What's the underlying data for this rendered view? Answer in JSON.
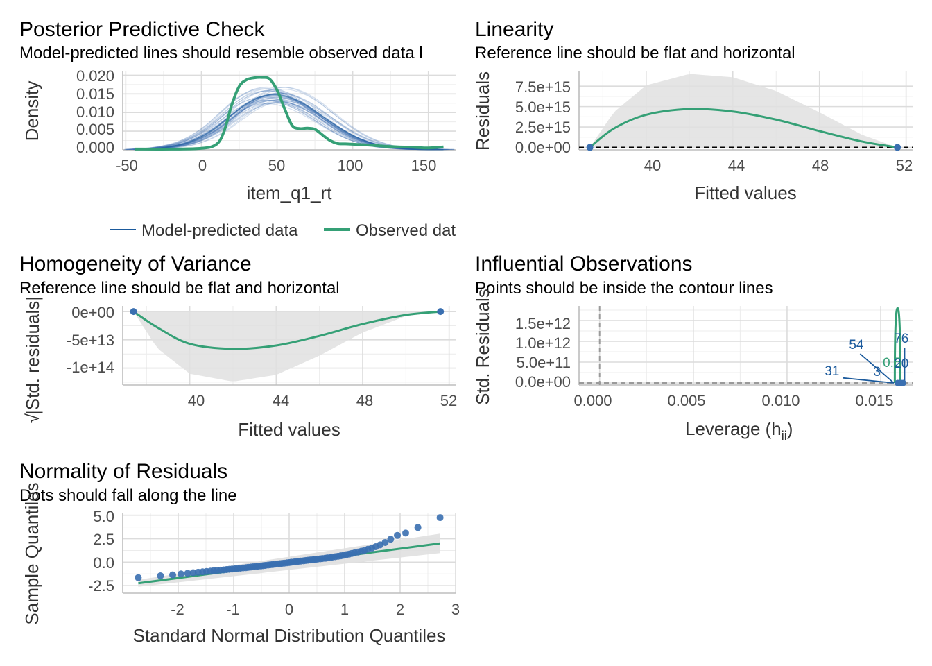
{
  "colors": {
    "blue": "#1b5a9c",
    "blue_light": "#3a6fb0",
    "green": "#35a076",
    "ribbon": "#e0e0e0",
    "dashed": "#000000",
    "dashed_gray": "#9a9a9a"
  },
  "panels": {
    "ppc": {
      "title": "Posterior Predictive Check",
      "subtitle": "Model-predicted lines should resemble observed data l",
      "xlabel": "item_q1_rt",
      "ylabel": "Density",
      "xticks": [
        "-50",
        "0",
        "50",
        "100",
        "150"
      ],
      "yticks": [
        "0.000",
        "0.005",
        "0.010",
        "0.015",
        "0.020"
      ],
      "legend": {
        "model": "Model-predicted data",
        "observed": "Observed dat"
      }
    },
    "linearity": {
      "title": "Linearity",
      "subtitle": "Reference line should be flat and horizontal",
      "xlabel": "Fitted values",
      "ylabel": "Residuals",
      "xticks": [
        "40",
        "44",
        "48",
        "52"
      ],
      "yticks": [
        "0.0e+00",
        "2.5e+15",
        "5.0e+15",
        "7.5e+15"
      ]
    },
    "homogeneity": {
      "title": "Homogeneity of Variance",
      "subtitle": "Reference line should be flat and horizontal",
      "xlabel": "Fitted values",
      "ylabel": "|Std. residuals|",
      "ylabel_prefix": "√",
      "xticks": [
        "40",
        "44",
        "48",
        "52"
      ],
      "yticks": [
        "0e+00",
        "-5e+13",
        "-1e+14"
      ]
    },
    "influential": {
      "title": "Influential Observations",
      "subtitle": "Points should be inside the contour lines",
      "xlabel": "Leverage (h",
      "xlabel_sub": "ii",
      "xlabel_end": ")",
      "ylabel": "Std. Residuals",
      "xticks": [
        "0.000",
        "0.005",
        "0.010",
        "0.015"
      ],
      "yticks": [
        "0.0e+00",
        "5.0e+11",
        "1.0e+12",
        "1.5e+12"
      ],
      "point_labels": [
        "54",
        "31",
        "3",
        "76",
        "0.5",
        "20"
      ]
    },
    "normality": {
      "title": "Normality of Residuals",
      "subtitle": "Dots should fall along the line",
      "xlabel": "Standard Normal Distribution Quantiles",
      "ylabel": "Sample Quantiles",
      "xticks": [
        "-2",
        "-1",
        "0",
        "1",
        "2",
        "3"
      ],
      "yticks": [
        "5.0",
        "2.5",
        "0.0",
        "-2.5"
      ]
    }
  },
  "chart_data": [
    {
      "type": "line",
      "title": "Posterior Predictive Check",
      "subtitle": "Model-predicted lines should resemble observed data l",
      "xlabel": "item_q1_rt",
      "ylabel": "Density",
      "xlim": [
        -52,
        168
      ],
      "ylim": [
        0,
        0.021
      ],
      "series": [
        {
          "name": "Observed dat",
          "x": [
            -44,
            -20,
            0,
            10,
            15,
            20,
            25,
            30,
            35,
            40,
            45,
            50,
            55,
            60,
            65,
            70,
            75,
            80,
            85,
            90,
            95,
            100,
            110,
            120,
            130,
            140,
            150,
            160
          ],
          "y": [
            0.0002,
            0.0002,
            0.0004,
            0.0015,
            0.005,
            0.012,
            0.017,
            0.0188,
            0.0193,
            0.0194,
            0.019,
            0.016,
            0.011,
            0.0065,
            0.0057,
            0.0058,
            0.0055,
            0.004,
            0.0025,
            0.0017,
            0.0016,
            0.0015,
            0.0013,
            0.001,
            0.0008,
            0.0007,
            0.0005,
            0.0008
          ]
        },
        {
          "name": "Model-predicted data",
          "x": [
            -44,
            -30,
            -20,
            -10,
            0,
            10,
            20,
            30,
            40,
            50,
            60,
            70,
            80,
            90,
            100,
            110,
            120,
            130,
            140,
            150,
            160
          ],
          "y": [
            0.0001,
            0.0004,
            0.0009,
            0.0018,
            0.0035,
            0.006,
            0.0093,
            0.0124,
            0.0143,
            0.0148,
            0.0138,
            0.0118,
            0.009,
            0.0062,
            0.0038,
            0.0021,
            0.001,
            0.0005,
            0.0002,
            0.0001,
            0.0001
          ]
        }
      ]
    },
    {
      "type": "line",
      "title": "Linearity",
      "subtitle": "Reference line should be flat and horizontal",
      "xlabel": "Fitted values",
      "ylabel": "Residuals",
      "xlim": [
        36.9,
        52.3
      ],
      "ylim": [
        -300000000000000.0,
        9300000000000000.0
      ],
      "points": {
        "x": [
          37.4,
          51.6
        ],
        "y": [
          0,
          0
        ]
      },
      "smooth": {
        "x": [
          37.4,
          38.5,
          40,
          42,
          44,
          46,
          48,
          50,
          51.6
        ],
        "y": [
          0,
          2300000000000000.0,
          4000000000000000.0,
          4700000000000000.0,
          4400000000000000.0,
          3400000000000000.0,
          2000000000000000.0,
          700000000000000.0,
          0
        ]
      },
      "ribbon_upper": [
        0,
        4300000000000000.0,
        7600000000000000.0,
        9000000000000000.0,
        8600000000000000.0,
        6900000000000000.0,
        4300000000000000.0,
        1500000000000000.0,
        0
      ],
      "reference_y": 0
    },
    {
      "type": "line",
      "title": "Homogeneity of Variance",
      "subtitle": "Reference line should be flat and horizontal",
      "xlabel": "Fitted values",
      "ylabel": "√|Std. residuals|",
      "xlim": [
        36.9,
        52.3
      ],
      "ylim": [
        -130000000000000.0,
        10000000000000.0
      ],
      "points": {
        "x": [
          37.4,
          51.6
        ],
        "y": [
          0,
          0
        ]
      },
      "smooth": {
        "x": [
          37.4,
          38.5,
          40,
          42,
          44,
          46,
          48,
          50,
          51.6
        ],
        "y": [
          0,
          -28000000000000.0,
          -57000000000000.0,
          -66000000000000.0,
          -60000000000000.0,
          -43000000000000.0,
          -22000000000000.0,
          -6000000000000.0,
          0
        ]
      },
      "ribbon_lower": [
        0,
        -65000000000000.0,
        -110000000000000.0,
        -124000000000000.0,
        -112000000000000.0,
        -78000000000000.0,
        -37000000000000.0,
        -8000000000000.0,
        0
      ]
    },
    {
      "type": "scatter",
      "title": "Influential Observations",
      "subtitle": "Points should be inside the contour lines",
      "xlabel": "Leverage (hii)",
      "ylabel": "Std. Residuals",
      "xlim": [
        -0.0011,
        0.0167
      ],
      "ylim": [
        -50000000000.0,
        1850000000000.0
      ],
      "points": {
        "x": [
          0.0159,
          0.016,
          0.0161,
          0.0162
        ],
        "y": [
          0,
          0,
          0,
          0
        ]
      },
      "labels": [
        {
          "text": "54",
          "x": 0.0137,
          "y": 820000000000.0
        },
        {
          "text": "31",
          "x": 0.0124,
          "y": 180000000000.0
        },
        {
          "text": "3",
          "x": 0.0148,
          "y": 170000000000.0
        },
        {
          "text": "76",
          "x": 0.0161,
          "y": 970000000000.0
        },
        {
          "text": "0.5",
          "x": 0.0156,
          "y": 380000000000.0
        },
        {
          "text": "20",
          "x": 0.0161,
          "y": 370000000000.0
        }
      ],
      "reference_y": 0,
      "reference_x": 0
    },
    {
      "type": "scatter",
      "title": "Normality of Residuals",
      "subtitle": "Dots should fall along the line",
      "xlabel": "Standard Normal Distribution Quantiles",
      "ylabel": "Sample Quantiles",
      "xlim": [
        -3.0,
        3.0
      ],
      "ylim": [
        -3.3,
        5.2
      ],
      "line": {
        "x": [
          -2.72,
          2.72
        ],
        "y": [
          -2.25,
          2.0
        ]
      },
      "points": {
        "x": [
          -2.72,
          -2.32,
          -2.1,
          -1.95,
          -1.83,
          -1.73,
          -1.64,
          -1.56,
          -1.49,
          -1.42,
          -1.36,
          -1.3,
          -1.24,
          -1.18,
          -1.13,
          -1.08,
          -1.03,
          -0.98,
          -0.93,
          -0.88,
          -0.83,
          -0.78,
          -0.74,
          -0.69,
          -0.65,
          -0.6,
          -0.56,
          -0.51,
          -0.47,
          -0.43,
          -0.38,
          -0.34,
          -0.3,
          -0.26,
          -0.21,
          -0.17,
          -0.13,
          -0.09,
          -0.04,
          0.0,
          0.04,
          0.09,
          0.13,
          0.17,
          0.21,
          0.26,
          0.3,
          0.34,
          0.38,
          0.43,
          0.47,
          0.51,
          0.56,
          0.6,
          0.65,
          0.69,
          0.74,
          0.78,
          0.83,
          0.88,
          0.93,
          0.98,
          1.03,
          1.08,
          1.13,
          1.18,
          1.24,
          1.3,
          1.36,
          1.42,
          1.49,
          1.56,
          1.64,
          1.73,
          1.83,
          1.95,
          2.1,
          2.32,
          2.72
        ],
        "y": [
          -1.65,
          -1.45,
          -1.35,
          -1.25,
          -1.18,
          -1.12,
          -1.07,
          -1.03,
          -0.99,
          -0.95,
          -0.91,
          -0.88,
          -0.85,
          -0.82,
          -0.79,
          -0.76,
          -0.73,
          -0.7,
          -0.67,
          -0.64,
          -0.61,
          -0.58,
          -0.55,
          -0.52,
          -0.49,
          -0.46,
          -0.43,
          -0.4,
          -0.37,
          -0.34,
          -0.31,
          -0.28,
          -0.25,
          -0.22,
          -0.19,
          -0.16,
          -0.13,
          -0.1,
          -0.07,
          -0.04,
          0.0,
          0.03,
          0.06,
          0.09,
          0.12,
          0.15,
          0.18,
          0.21,
          0.24,
          0.27,
          0.3,
          0.33,
          0.36,
          0.39,
          0.42,
          0.46,
          0.5,
          0.54,
          0.58,
          0.63,
          0.68,
          0.74,
          0.8,
          0.86,
          0.93,
          1.0,
          1.08,
          1.17,
          1.27,
          1.38,
          1.5,
          1.65,
          1.85,
          2.1,
          2.45,
          2.85,
          3.1,
          3.7,
          4.75
        ]
      }
    }
  ]
}
